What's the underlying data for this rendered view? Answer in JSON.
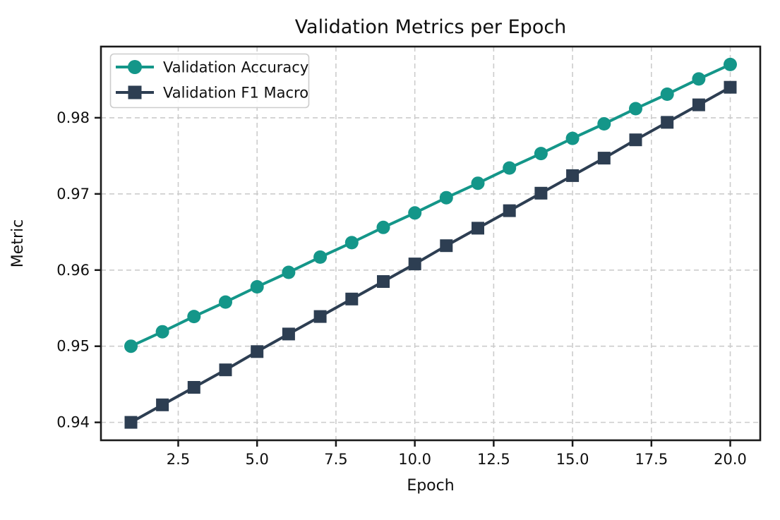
{
  "chart_data": {
    "type": "line",
    "title": "Validation Metrics per Epoch",
    "xlabel": "Epoch",
    "ylabel": "Metric",
    "x": [
      1,
      2,
      3,
      4,
      5,
      6,
      7,
      8,
      9,
      10,
      11,
      12,
      13,
      14,
      15,
      16,
      17,
      18,
      19,
      20
    ],
    "series": [
      {
        "name": "Validation Accuracy",
        "color": "#149689",
        "marker": "circle",
        "values": [
          0.95,
          0.9519,
          0.9539,
          0.9558,
          0.9578,
          0.9597,
          0.9617,
          0.9636,
          0.9656,
          0.9675,
          0.9695,
          0.9714,
          0.9734,
          0.9753,
          0.9773,
          0.9792,
          0.9812,
          0.9831,
          0.9851,
          0.987
        ]
      },
      {
        "name": "Validation F1 Macro",
        "color": "#2d3e52",
        "marker": "square",
        "values": [
          0.94,
          0.9423,
          0.9446,
          0.9469,
          0.9493,
          0.9516,
          0.9539,
          0.9562,
          0.9585,
          0.9608,
          0.9632,
          0.9655,
          0.9678,
          0.9701,
          0.9724,
          0.9747,
          0.9771,
          0.9794,
          0.9817,
          0.984
        ]
      }
    ],
    "xlim": [
      0.05,
      20.95
    ],
    "ylim": [
      0.93765,
      0.98935
    ],
    "xticks": {
      "values": [
        2.5,
        5.0,
        7.5,
        10.0,
        12.5,
        15.0,
        17.5,
        20.0
      ],
      "labels": [
        "2.5",
        "5.0",
        "7.5",
        "10.0",
        "12.5",
        "15.0",
        "17.5",
        "20.0"
      ]
    },
    "yticks": {
      "values": [
        0.94,
        0.95,
        0.96,
        0.97,
        0.98
      ],
      "labels": [
        "0.94",
        "0.95",
        "0.96",
        "0.97",
        "0.98"
      ]
    },
    "grid": true,
    "legend_position": "upper left",
    "colors": {
      "background": "#ffffff",
      "grid": "#cccccc",
      "axis": "#1a1a1a",
      "text": "#0f0f0f"
    }
  }
}
